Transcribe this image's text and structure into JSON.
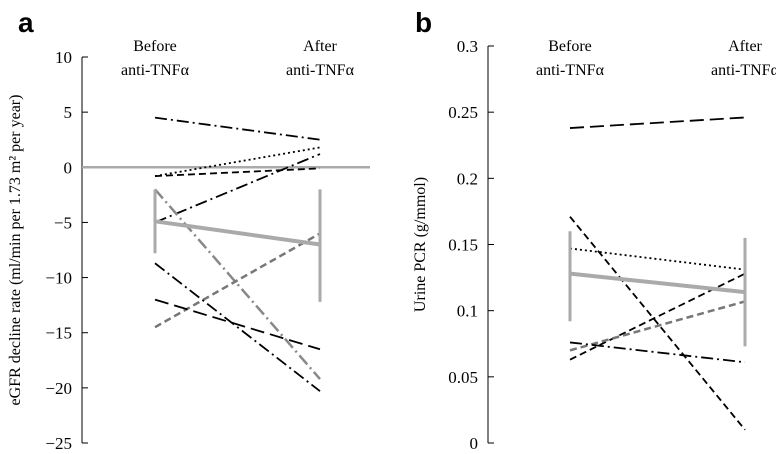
{
  "chart_data": [
    {
      "type": "line",
      "panel_label": "a",
      "categories": [
        "Before\nanti-TNFα",
        "After\nanti-TNFα"
      ],
      "ylabel": "eGFR decline rate (ml/min per 1.73 m² per year)",
      "ylim": [
        -25,
        10
      ],
      "yticks": [
        -25,
        -20,
        -15,
        -10,
        -5,
        0,
        5,
        10
      ],
      "reference_line": 0,
      "series": [
        {
          "values": [
            4.5,
            2.5
          ],
          "style": "dashdot",
          "color": "#000000"
        },
        {
          "values": [
            -0.8,
            1.8
          ],
          "style": "dotted",
          "color": "#000000"
        },
        {
          "values": [
            -0.8,
            -0.1
          ],
          "style": "dashed",
          "color": "#000000"
        },
        {
          "values": [
            -5.0,
            1.2
          ],
          "style": "dashdot",
          "color": "#000000"
        },
        {
          "values": [
            -2.0,
            -19.2
          ],
          "style": "dashdot",
          "color": "#888888"
        },
        {
          "values": [
            -14.5,
            -6.0
          ],
          "style": "dashed",
          "color": "#777777"
        },
        {
          "values": [
            -8.7,
            -20.3
          ],
          "style": "dashdot",
          "color": "#000000"
        },
        {
          "values": [
            -12.0,
            -16.5
          ],
          "style": "longdash",
          "color": "#000000"
        },
        {
          "values": [
            -4.9,
            -7.0
          ],
          "style": "solid",
          "color": "#aaaaaa",
          "mean": true,
          "error": [
            [
              -7.8,
              -2.0
            ],
            [
              -12.2,
              -2.0
            ]
          ]
        }
      ]
    },
    {
      "type": "line",
      "panel_label": "b",
      "categories": [
        "Before\nanti-TNFα",
        "After\nanti-TNFα"
      ],
      "ylabel": "Urine PCR (g/mmol)",
      "ylim": [
        0,
        0.3
      ],
      "yticks": [
        0,
        0.05,
        0.1,
        0.15,
        0.2,
        0.25,
        0.3
      ],
      "series": [
        {
          "values": [
            0.238,
            0.246
          ],
          "style": "longdash",
          "color": "#000000"
        },
        {
          "values": [
            0.147,
            0.131
          ],
          "style": "dotted",
          "color": "#000000"
        },
        {
          "values": [
            0.171,
            0.01
          ],
          "style": "dashed",
          "color": "#000000"
        },
        {
          "values": [
            0.063,
            0.128
          ],
          "style": "dashed",
          "color": "#000000"
        },
        {
          "values": [
            0.07,
            0.107
          ],
          "style": "dashed",
          "color": "#777777"
        },
        {
          "values": [
            0.076,
            0.061
          ],
          "style": "dashdot",
          "color": "#000000"
        },
        {
          "values": [
            0.128,
            0.114
          ],
          "style": "solid",
          "color": "#aaaaaa",
          "mean": true,
          "error": [
            [
              0.092,
              0.16
            ],
            [
              0.073,
              0.155
            ]
          ]
        }
      ]
    }
  ]
}
